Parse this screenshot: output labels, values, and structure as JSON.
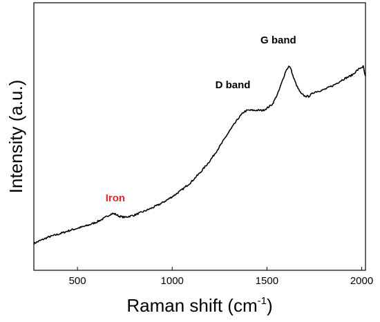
{
  "chart_data": {
    "type": "line",
    "title": "",
    "xlabel": "Raman shift (cm",
    "xlabel_sup": "-1",
    "xlabel_end": ")",
    "ylabel": "Intensity (a.u.)",
    "xlim": [
      270,
      2020
    ],
    "ylim": [
      0,
      100
    ],
    "y_ticks_shown": false,
    "x_ticks": [
      500,
      1000,
      1500,
      2000
    ],
    "x_tick_labels": [
      "500",
      "1000",
      "1500",
      "2000"
    ],
    "grid": false,
    "legend": "none",
    "series": [
      {
        "color": "#000000",
        "points": [
          [
            270,
            10.0
          ],
          [
            300,
            11.0
          ],
          [
            350,
            12.5
          ],
          [
            400,
            13.5
          ],
          [
            450,
            14.7
          ],
          [
            500,
            15.7
          ],
          [
            550,
            16.7
          ],
          [
            600,
            18.0
          ],
          [
            640,
            19.4
          ],
          [
            670,
            20.8
          ],
          [
            685,
            21.2
          ],
          [
            700,
            21.0
          ],
          [
            720,
            20.2
          ],
          [
            750,
            19.8
          ],
          [
            780,
            20.3
          ],
          [
            800,
            20.6
          ],
          [
            850,
            22.0
          ],
          [
            900,
            23.5
          ],
          [
            950,
            25.3
          ],
          [
            1000,
            27.5
          ],
          [
            1050,
            30.0
          ],
          [
            1100,
            33.0
          ],
          [
            1150,
            36.7
          ],
          [
            1200,
            41.0
          ],
          [
            1250,
            46.2
          ],
          [
            1300,
            51.8
          ],
          [
            1350,
            56.9
          ],
          [
            1380,
            59.3
          ],
          [
            1400,
            59.8
          ],
          [
            1450,
            59.8
          ],
          [
            1480,
            59.8
          ],
          [
            1500,
            60.6
          ],
          [
            1530,
            62.2
          ],
          [
            1560,
            66.5
          ],
          [
            1580,
            70.5
          ],
          [
            1600,
            74.6
          ],
          [
            1615,
            76.2
          ],
          [
            1625,
            75.6
          ],
          [
            1640,
            72.0
          ],
          [
            1660,
            68.5
          ],
          [
            1680,
            66.0
          ],
          [
            1700,
            65.1
          ],
          [
            1720,
            65.0
          ],
          [
            1750,
            66.6
          ],
          [
            1800,
            67.5
          ],
          [
            1850,
            69.1
          ],
          [
            1900,
            71.3
          ],
          [
            1950,
            73.0
          ],
          [
            1975,
            74.7
          ],
          [
            2000,
            75.9
          ],
          [
            2008,
            76.2
          ],
          [
            2015,
            73.6
          ],
          [
            2020,
            72.6
          ]
        ]
      }
    ],
    "annotations": [
      {
        "text": "Iron",
        "x": 700,
        "y": 25.8,
        "color": "#e8262a"
      },
      {
        "text": "D band",
        "x": 1320,
        "y": 68.0,
        "color": "#000000"
      },
      {
        "text": "G band",
        "x": 1560,
        "y": 84.8,
        "color": "#000000"
      }
    ]
  }
}
